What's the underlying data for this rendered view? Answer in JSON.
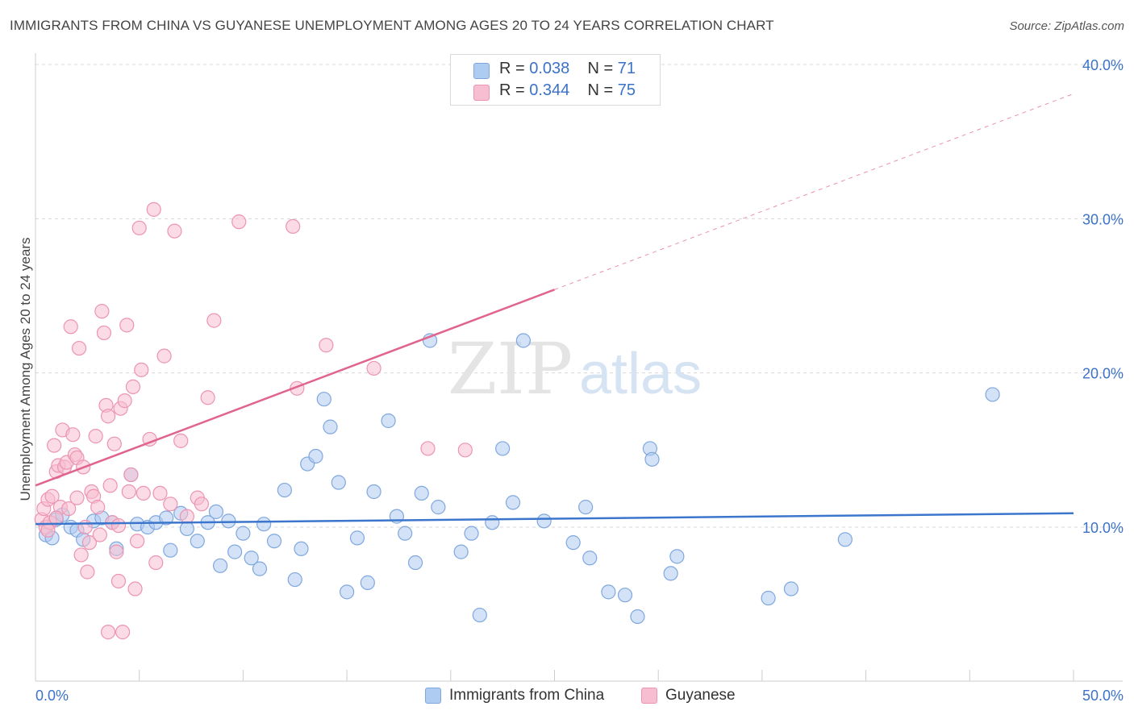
{
  "title": "IMMIGRANTS FROM CHINA VS GUYANESE UNEMPLOYMENT AMONG AGES 20 TO 24 YEARS CORRELATION CHART",
  "source": "Source: ZipAtlas.com",
  "watermark": {
    "zip": "ZIP",
    "atlas": "atlas"
  },
  "legend": {
    "r_label": "R =",
    "n_label": "N =",
    "series": [
      {
        "r": "0.038",
        "n": "71"
      },
      {
        "r": "0.344",
        "n": "75"
      }
    ]
  },
  "colors": {
    "china_fill": "#aecbf1",
    "china_stroke": "#7fa8de",
    "china_line": "#3b76cc",
    "guyanese_fill": "#f7bdd0",
    "guyanese_stroke": "#ec94b2",
    "guyanese_line": "#e0648e",
    "tick_label": "#3b72c8",
    "grid": "#d8d8d8",
    "axis": "#cccccc"
  },
  "chart_data": {
    "type": "scatter",
    "title": "IMMIGRANTS FROM CHINA VS GUYANESE UNEMPLOYMENT AMONG AGES 20 TO 24 YEARS CORRELATION CHART",
    "xlabel": "",
    "ylabel": "Unemployment Among Ages 20 to 24 years",
    "xlim": [
      0,
      50
    ],
    "ylim": [
      0,
      42
    ],
    "x_tick_labels": [
      "0.0%",
      "50.0%"
    ],
    "y_ticks": [
      10,
      20,
      30,
      40
    ],
    "y_tick_labels": [
      "10.0%",
      "20.0%",
      "30.0%",
      "40.0%"
    ],
    "grid": true,
    "series": [
      {
        "name": "Immigrants from China",
        "r": 0.038,
        "n": 71,
        "trend": {
          "x0": 0,
          "y0": 10.2,
          "x1": 50,
          "y1": 10.9,
          "dashed_from": null
        },
        "points": [
          [
            0.5,
            9.5
          ],
          [
            0.8,
            9.3
          ],
          [
            1.0,
            10.5
          ],
          [
            1.3,
            10.8
          ],
          [
            1.7,
            10.0
          ],
          [
            2.0,
            9.8
          ],
          [
            2.3,
            9.2
          ],
          [
            2.8,
            10.4
          ],
          [
            3.2,
            10.6
          ],
          [
            3.7,
            10.3
          ],
          [
            3.9,
            8.6
          ],
          [
            4.6,
            13.4
          ],
          [
            4.9,
            10.2
          ],
          [
            5.4,
            10.0
          ],
          [
            5.8,
            10.3
          ],
          [
            6.3,
            10.6
          ],
          [
            6.5,
            8.5
          ],
          [
            7.0,
            10.9
          ],
          [
            7.3,
            9.9
          ],
          [
            7.8,
            9.1
          ],
          [
            8.3,
            10.3
          ],
          [
            8.7,
            11.0
          ],
          [
            8.9,
            7.5
          ],
          [
            9.3,
            10.4
          ],
          [
            9.6,
            8.4
          ],
          [
            10.0,
            9.6
          ],
          [
            10.4,
            8.0
          ],
          [
            10.8,
            7.3
          ],
          [
            11.0,
            10.2
          ],
          [
            11.5,
            9.1
          ],
          [
            12.0,
            12.4
          ],
          [
            12.5,
            6.6
          ],
          [
            12.8,
            8.6
          ],
          [
            13.1,
            14.1
          ],
          [
            13.5,
            14.6
          ],
          [
            13.9,
            18.3
          ],
          [
            14.2,
            16.5
          ],
          [
            14.6,
            12.9
          ],
          [
            15.0,
            5.8
          ],
          [
            15.5,
            9.3
          ],
          [
            16.0,
            6.4
          ],
          [
            16.3,
            12.3
          ],
          [
            17.0,
            16.9
          ],
          [
            17.4,
            10.7
          ],
          [
            17.8,
            9.6
          ],
          [
            18.3,
            7.7
          ],
          [
            18.6,
            12.2
          ],
          [
            19.0,
            22.1
          ],
          [
            19.4,
            11.3
          ],
          [
            20.5,
            8.4
          ],
          [
            21.0,
            9.6
          ],
          [
            21.4,
            4.3
          ],
          [
            22.0,
            10.3
          ],
          [
            22.5,
            15.1
          ],
          [
            23.0,
            11.6
          ],
          [
            23.5,
            22.1
          ],
          [
            24.5,
            10.4
          ],
          [
            25.9,
            9.0
          ],
          [
            26.5,
            11.3
          ],
          [
            26.7,
            8.0
          ],
          [
            27.6,
            5.8
          ],
          [
            28.4,
            5.6
          ],
          [
            29.0,
            4.2
          ],
          [
            29.6,
            15.1
          ],
          [
            29.7,
            14.4
          ],
          [
            30.6,
            7.0
          ],
          [
            30.9,
            8.1
          ],
          [
            35.3,
            5.4
          ],
          [
            36.4,
            6.0
          ],
          [
            39.0,
            9.2
          ],
          [
            46.1,
            18.6
          ]
        ]
      },
      {
        "name": "Guyanese",
        "r": 0.344,
        "n": 75,
        "trend": {
          "x0": 0,
          "y0": 12.7,
          "x1": 50,
          "y1": 38.1,
          "dashed_from": 25
        },
        "points": [
          [
            0.3,
            10.5
          ],
          [
            0.4,
            11.2
          ],
          [
            0.5,
            10.0
          ],
          [
            0.6,
            11.8
          ],
          [
            0.7,
            10.3
          ],
          [
            0.8,
            12.0
          ],
          [
            0.9,
            15.3
          ],
          [
            1.0,
            13.6
          ],
          [
            1.1,
            14.0
          ],
          [
            1.2,
            11.3
          ],
          [
            1.3,
            16.3
          ],
          [
            1.4,
            13.9
          ],
          [
            1.5,
            14.2
          ],
          [
            1.6,
            11.2
          ],
          [
            1.7,
            23.0
          ],
          [
            1.8,
            16.0
          ],
          [
            1.9,
            14.7
          ],
          [
            2.0,
            14.5
          ],
          [
            2.1,
            21.6
          ],
          [
            2.2,
            8.2
          ],
          [
            2.3,
            13.9
          ],
          [
            2.4,
            10.0
          ],
          [
            2.5,
            7.1
          ],
          [
            2.6,
            9.0
          ],
          [
            2.7,
            12.3
          ],
          [
            2.8,
            12.0
          ],
          [
            2.9,
            15.9
          ],
          [
            3.0,
            11.3
          ],
          [
            3.1,
            9.5
          ],
          [
            3.2,
            24.0
          ],
          [
            3.3,
            22.6
          ],
          [
            3.4,
            17.9
          ],
          [
            3.5,
            17.2
          ],
          [
            3.6,
            12.7
          ],
          [
            3.7,
            10.3
          ],
          [
            3.8,
            15.4
          ],
          [
            3.9,
            8.4
          ],
          [
            4.0,
            6.5
          ],
          [
            4.1,
            17.7
          ],
          [
            4.2,
            3.2
          ],
          [
            4.3,
            18.2
          ],
          [
            4.4,
            23.1
          ],
          [
            4.5,
            12.3
          ],
          [
            4.6,
            13.4
          ],
          [
            4.7,
            19.1
          ],
          [
            4.8,
            6.0
          ],
          [
            4.9,
            9.1
          ],
          [
            5.0,
            29.4
          ],
          [
            5.1,
            20.2
          ],
          [
            5.2,
            12.2
          ],
          [
            5.5,
            15.7
          ],
          [
            5.7,
            30.6
          ],
          [
            6.0,
            12.2
          ],
          [
            6.2,
            21.1
          ],
          [
            6.5,
            11.5
          ],
          [
            7.0,
            15.6
          ],
          [
            7.3,
            10.7
          ],
          [
            7.8,
            11.9
          ],
          [
            8.0,
            11.5
          ],
          [
            8.3,
            18.4
          ],
          [
            8.6,
            23.4
          ],
          [
            5.8,
            7.7
          ],
          [
            6.7,
            29.2
          ],
          [
            9.8,
            29.8
          ],
          [
            12.4,
            29.5
          ],
          [
            12.6,
            19.0
          ],
          [
            14.0,
            21.8
          ],
          [
            16.3,
            20.3
          ],
          [
            18.9,
            15.1
          ],
          [
            20.7,
            15.0
          ],
          [
            3.5,
            3.2
          ],
          [
            0.6,
            9.8
          ],
          [
            2.0,
            11.9
          ],
          [
            4.0,
            10.1
          ],
          [
            1.0,
            10.6
          ]
        ]
      }
    ]
  },
  "bottom_legend": [
    "Immigrants from China",
    "Guyanese"
  ]
}
